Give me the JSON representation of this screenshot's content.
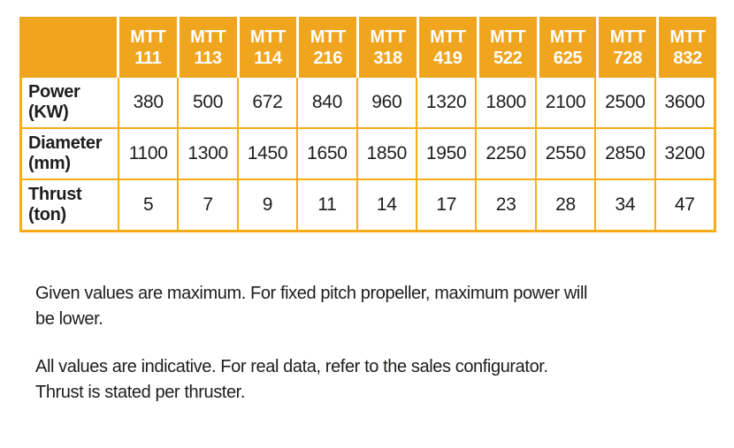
{
  "colors": {
    "header_orange": "#F0A51F",
    "border_orange": "#F9AC15",
    "header_text": "#ffffff",
    "body_text": "#1d1d1b",
    "background": "#ffffff"
  },
  "chart_data": {
    "type": "table",
    "columns": [
      "MTT 111",
      "MTT 113",
      "MTT 114",
      "MTT 216",
      "MTT 318",
      "MTT 419",
      "MTT 522",
      "MTT 625",
      "MTT 728",
      "MTT 832"
    ],
    "rows": [
      {
        "label": "Power (KW)",
        "values": [
          380,
          500,
          672,
          840,
          960,
          1320,
          1800,
          2100,
          2500,
          3600
        ]
      },
      {
        "label": "Diameter (mm)",
        "values": [
          1100,
          1300,
          1450,
          1650,
          1850,
          1950,
          2250,
          2550,
          2850,
          3200
        ]
      },
      {
        "label": "Thrust (ton)",
        "values": [
          5,
          7,
          9,
          11,
          14,
          17,
          23,
          28,
          34,
          47
        ]
      }
    ]
  },
  "table": {
    "corner": "",
    "columns": [
      {
        "series": "MTT",
        "model": "111"
      },
      {
        "series": "MTT",
        "model": "113"
      },
      {
        "series": "MTT",
        "model": "114"
      },
      {
        "series": "MTT",
        "model": "216"
      },
      {
        "series": "MTT",
        "model": "318"
      },
      {
        "series": "MTT",
        "model": "419"
      },
      {
        "series": "MTT",
        "model": "522"
      },
      {
        "series": "MTT",
        "model": "625"
      },
      {
        "series": "MTT",
        "model": "728"
      },
      {
        "series": "MTT",
        "model": "832"
      }
    ],
    "rows": [
      {
        "label": "Power",
        "unit": "(KW)",
        "values": [
          "380",
          "500",
          "672",
          "840",
          "960",
          "1320",
          "1800",
          "2100",
          "2500",
          "3600"
        ]
      },
      {
        "label": "Diameter",
        "unit": "(mm)",
        "values": [
          "1100",
          "1300",
          "1450",
          "1650",
          "1850",
          "1950",
          "2250",
          "2550",
          "2850",
          "3200"
        ]
      },
      {
        "label": "Thrust",
        "unit": "(ton)",
        "values": [
          "5",
          "7",
          "9",
          "11",
          "14",
          "17",
          "23",
          "28",
          "34",
          "47"
        ]
      }
    ]
  },
  "notes": [
    {
      "lines": [
        "Given values are maximum. For fixed pitch propeller, maximum power will",
        "be lower."
      ]
    },
    {
      "lines": [
        "All values are indicative. For real data, refer to the sales configurator.",
        "Thrust is stated per thruster."
      ]
    }
  ]
}
